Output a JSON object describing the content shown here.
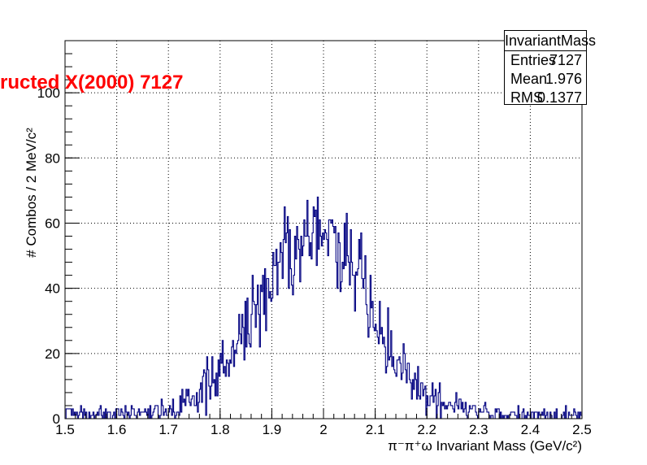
{
  "chart_data": {
    "type": "histogram",
    "title": "ructed X(2000) 7127",
    "xlabel": "π⁻π⁺ω Invariant Mass (GeV/c²)",
    "ylabel": "# Combos / 2 MeV/c²",
    "xlim": [
      1.5,
      2.5
    ],
    "ylim": [
      0,
      116
    ],
    "bin_width": 0.002,
    "x_ticks": [
      "1.5",
      "1.6",
      "1.7",
      "1.8",
      "1.9",
      "2",
      "2.1",
      "2.2",
      "2.3",
      "2.4",
      "2.5"
    ],
    "y_ticks": [
      "0",
      "20",
      "40",
      "60",
      "80",
      "100"
    ],
    "grid": true,
    "colors": {
      "histogram": "#000080",
      "title": "#ff0000"
    },
    "stats": {
      "name": "InvariantMass",
      "entries_label": "Entries",
      "entries": "7127",
      "mean_label": "Mean",
      "mean": "1.976",
      "rms_label": "RMS",
      "rms": "0.1377"
    }
  }
}
